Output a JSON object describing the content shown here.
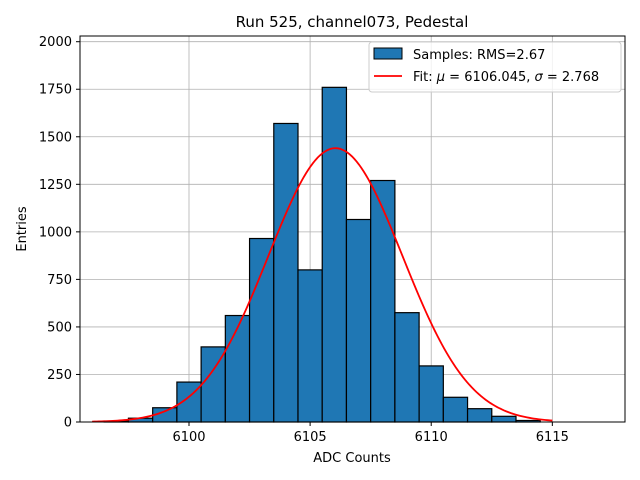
{
  "chart_data": {
    "type": "bar",
    "title": "Run 525, channel073, Pedestal",
    "xlabel": "ADC Counts",
    "ylabel": "Entries",
    "xlim": [
      6095.5,
      6118.0
    ],
    "ylim": [
      0,
      2030
    ],
    "xticks": [
      6100,
      6105,
      6110,
      6115
    ],
    "yticks": [
      0,
      250,
      500,
      750,
      1000,
      1250,
      1500,
      1750,
      2000
    ],
    "grid": true,
    "legend_position": "top-right",
    "bin_width": 1,
    "bins": [
      {
        "x": 6097,
        "value": 5
      },
      {
        "x": 6098,
        "value": 20
      },
      {
        "x": 6099,
        "value": 75
      },
      {
        "x": 6100,
        "value": 210
      },
      {
        "x": 6101,
        "value": 395
      },
      {
        "x": 6102,
        "value": 560
      },
      {
        "x": 6103,
        "value": 965
      },
      {
        "x": 6104,
        "value": 1570
      },
      {
        "x": 6105,
        "value": 800
      },
      {
        "x": 6106,
        "value": 1760
      },
      {
        "x": 6107,
        "value": 1065
      },
      {
        "x": 6108,
        "value": 1270
      },
      {
        "x": 6109,
        "value": 575
      },
      {
        "x": 6110,
        "value": 295
      },
      {
        "x": 6111,
        "value": 130
      },
      {
        "x": 6112,
        "value": 70
      },
      {
        "x": 6113,
        "value": 30
      },
      {
        "x": 6114,
        "value": 8
      }
    ],
    "fit": {
      "mu": 6106.045,
      "sigma": 2.768,
      "amplitude": 1440,
      "x_range": [
        6096,
        6115
      ]
    },
    "series": [
      {
        "name": "Samples: RMS=2.67",
        "type": "histogram",
        "color": "#1f77b4"
      },
      {
        "name_prefix": "Fit: ",
        "mu_symbol": "μ",
        "mu_text": " = 6106.045, ",
        "sigma_symbol": "σ",
        "sigma_text": " = 2.768",
        "type": "line",
        "color": "#ff0000"
      }
    ]
  }
}
